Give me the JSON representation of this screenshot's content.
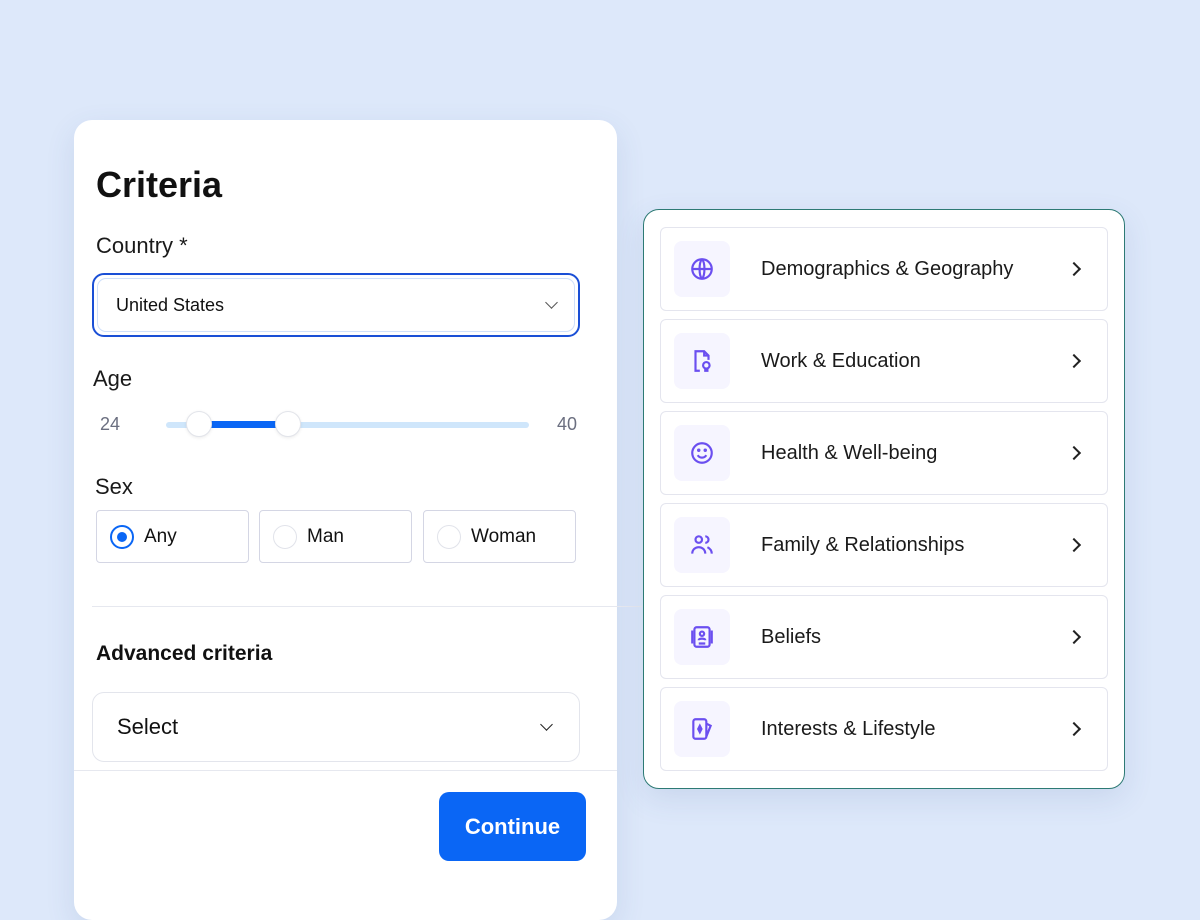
{
  "criteria": {
    "title": "Criteria",
    "country_label": "Country *",
    "country_value": "United States",
    "age_label": "Age",
    "age_min": "24",
    "age_max": "40",
    "age_range_low_fraction": 0.09,
    "age_range_high_fraction": 0.34,
    "sex_label": "Sex",
    "sex_options": [
      {
        "label": "Any",
        "selected": true
      },
      {
        "label": "Man",
        "selected": false
      },
      {
        "label": "Woman",
        "selected": false
      }
    ],
    "advanced_label": "Advanced criteria",
    "advanced_placeholder": "Select",
    "continue_label": "Continue"
  },
  "categories": [
    {
      "label": "Demographics & Geography",
      "icon": "globe-icon"
    },
    {
      "label": "Work & Education",
      "icon": "certificate-document-icon"
    },
    {
      "label": "Health & Well-being",
      "icon": "smiley-icon"
    },
    {
      "label": "Family & Relationships",
      "icon": "users-icon"
    },
    {
      "label": "Beliefs",
      "icon": "portrait-book-icon"
    },
    {
      "label": "Interests & Lifestyle",
      "icon": "card-icon"
    }
  ],
  "colors": {
    "accent": "#0a66f5",
    "icon": "#6b4ff0",
    "panel_border": "#2d7a74",
    "background": "#dde8fa"
  }
}
